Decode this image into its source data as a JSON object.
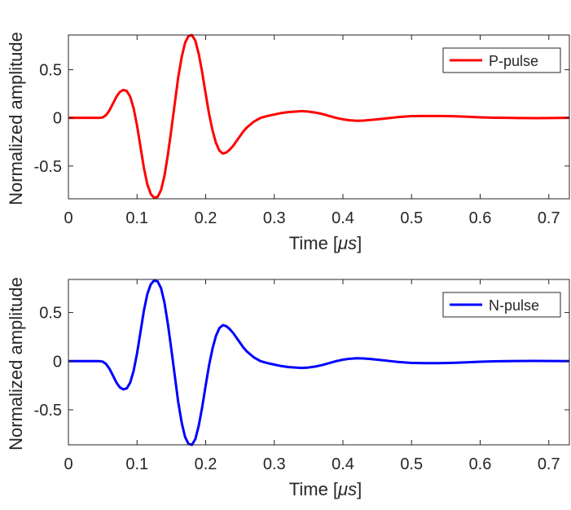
{
  "chart_data": [
    {
      "type": "line",
      "xlabel": "Time [",
      "xlabel_unit": "μs",
      "xlabel_end": "]",
      "ylabel": "Normalized amplitude",
      "xlim": [
        0,
        0.73
      ],
      "ylim": [
        -0.84,
        0.86
      ],
      "xticks": [
        "0",
        "0.1",
        "0.2",
        "0.3",
        "0.4",
        "0.5",
        "0.6",
        "0.7"
      ],
      "yticks": [
        "-0.5",
        "0",
        "0.5"
      ],
      "legend_position": "top-right",
      "series": [
        {
          "name": "P-pulse",
          "color": "#ff0000",
          "x": [
            0,
            0.03,
            0.045,
            0.05,
            0.055,
            0.06,
            0.065,
            0.07,
            0.075,
            0.08,
            0.085,
            0.09,
            0.095,
            0.1,
            0.105,
            0.11,
            0.115,
            0.12,
            0.125,
            0.13,
            0.135,
            0.14,
            0.145,
            0.15,
            0.155,
            0.16,
            0.165,
            0.17,
            0.175,
            0.18,
            0.185,
            0.19,
            0.195,
            0.2,
            0.205,
            0.21,
            0.215,
            0.22,
            0.225,
            0.23,
            0.235,
            0.24,
            0.245,
            0.25,
            0.255,
            0.26,
            0.265,
            0.27,
            0.275,
            0.28,
            0.29,
            0.3,
            0.31,
            0.32,
            0.33,
            0.34,
            0.35,
            0.36,
            0.37,
            0.38,
            0.39,
            0.4,
            0.41,
            0.42,
            0.43,
            0.44,
            0.45,
            0.46,
            0.47,
            0.48,
            0.49,
            0.5,
            0.52,
            0.54,
            0.56,
            0.58,
            0.6,
            0.62,
            0.64,
            0.66,
            0.68,
            0.7,
            0.73
          ],
          "y": [
            0,
            0,
            0,
            0.005,
            0.03,
            0.08,
            0.15,
            0.22,
            0.27,
            0.29,
            0.28,
            0.22,
            0.1,
            -0.08,
            -0.3,
            -0.52,
            -0.69,
            -0.79,
            -0.83,
            -0.82,
            -0.75,
            -0.6,
            -0.38,
            -0.12,
            0.15,
            0.42,
            0.63,
            0.78,
            0.85,
            0.86,
            0.8,
            0.66,
            0.47,
            0.25,
            0.04,
            -0.13,
            -0.26,
            -0.34,
            -0.37,
            -0.36,
            -0.33,
            -0.29,
            -0.24,
            -0.19,
            -0.14,
            -0.1,
            -0.07,
            -0.04,
            -0.02,
            0,
            0.02,
            0.035,
            0.05,
            0.06,
            0.065,
            0.07,
            0.065,
            0.055,
            0.04,
            0.02,
            0,
            -0.015,
            -0.025,
            -0.03,
            -0.028,
            -0.022,
            -0.015,
            -0.008,
            0,
            0.008,
            0.013,
            0.018,
            0.02,
            0.02,
            0.017,
            0.012,
            0.006,
            0.002,
            0,
            -0.002,
            -0.003,
            -0.002,
            0
          ]
        }
      ]
    },
    {
      "type": "line",
      "xlabel": "Time [",
      "xlabel_unit": "μs",
      "xlabel_end": "]",
      "ylabel": "Normalized amplitude",
      "xlim": [
        0,
        0.73
      ],
      "ylim": [
        -0.86,
        0.84
      ],
      "xticks": [
        "0",
        "0.1",
        "0.2",
        "0.3",
        "0.4",
        "0.5",
        "0.6",
        "0.7"
      ],
      "yticks": [
        "-0.5",
        "0",
        "0.5"
      ],
      "legend_position": "top-right",
      "series": [
        {
          "name": "N-pulse",
          "color": "#0000ff",
          "x": [
            0,
            0.03,
            0.045,
            0.05,
            0.055,
            0.06,
            0.065,
            0.07,
            0.075,
            0.08,
            0.085,
            0.09,
            0.095,
            0.1,
            0.105,
            0.11,
            0.115,
            0.12,
            0.125,
            0.13,
            0.135,
            0.14,
            0.145,
            0.15,
            0.155,
            0.16,
            0.165,
            0.17,
            0.175,
            0.18,
            0.185,
            0.19,
            0.195,
            0.2,
            0.205,
            0.21,
            0.215,
            0.22,
            0.225,
            0.23,
            0.235,
            0.24,
            0.245,
            0.25,
            0.255,
            0.26,
            0.265,
            0.27,
            0.275,
            0.28,
            0.29,
            0.3,
            0.31,
            0.32,
            0.33,
            0.34,
            0.35,
            0.36,
            0.37,
            0.38,
            0.39,
            0.4,
            0.41,
            0.42,
            0.43,
            0.44,
            0.45,
            0.46,
            0.47,
            0.48,
            0.49,
            0.5,
            0.52,
            0.54,
            0.56,
            0.58,
            0.6,
            0.62,
            0.64,
            0.66,
            0.68,
            0.7,
            0.73
          ],
          "y": [
            0,
            0,
            0,
            -0.005,
            -0.03,
            -0.08,
            -0.15,
            -0.22,
            -0.27,
            -0.29,
            -0.28,
            -0.22,
            -0.1,
            0.08,
            0.3,
            0.52,
            0.69,
            0.79,
            0.83,
            0.82,
            0.75,
            0.6,
            0.38,
            0.12,
            -0.15,
            -0.42,
            -0.63,
            -0.78,
            -0.85,
            -0.86,
            -0.8,
            -0.66,
            -0.47,
            -0.25,
            -0.04,
            0.13,
            0.26,
            0.34,
            0.37,
            0.36,
            0.33,
            0.29,
            0.24,
            0.19,
            0.14,
            0.1,
            0.07,
            0.04,
            0.02,
            0,
            -0.02,
            -0.035,
            -0.05,
            -0.06,
            -0.065,
            -0.07,
            -0.065,
            -0.055,
            -0.04,
            -0.02,
            0,
            0.015,
            0.025,
            0.03,
            0.028,
            0.022,
            0.015,
            0.008,
            0,
            -0.008,
            -0.013,
            -0.018,
            -0.02,
            -0.02,
            -0.017,
            -0.012,
            -0.006,
            -0.002,
            0,
            0.002,
            0.003,
            0.002,
            0
          ]
        }
      ]
    }
  ]
}
